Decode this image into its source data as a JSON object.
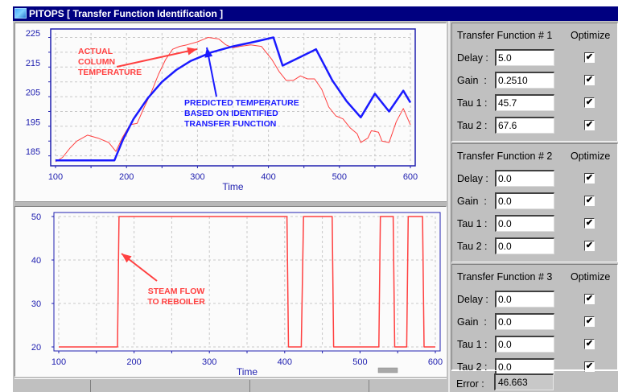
{
  "window": {
    "title": "PITOPS [ Transfer Function Identification ]"
  },
  "colors": {
    "title_bar": "#000080",
    "axis": "#2020b0",
    "actual": "#ff4040",
    "predicted": "#1a1aff",
    "panel": "#c0c0c0"
  },
  "top_chart": {
    "xlabel": "Time",
    "annotation_actual": [
      "ACTUAL",
      "COLUMN",
      "TEMPERATURE"
    ],
    "annotation_predicted": [
      "PREDICTED TEMPERATURE",
      "BASED ON IDENTIFIED",
      "TRANSFER FUNCTION"
    ]
  },
  "bottom_chart": {
    "xlabel": "Time",
    "annotation": [
      "STEAM FLOW",
      "TO REBOILER"
    ]
  },
  "chart_data": [
    {
      "type": "line",
      "title": "",
      "xlabel": "Time",
      "ylabel": "",
      "xlim": [
        100,
        600
      ],
      "ylim": [
        181.5,
        225
      ],
      "x_ticks": [
        100,
        200,
        300,
        400,
        500,
        600
      ],
      "y_ticks": [
        185,
        195,
        205,
        215,
        225
      ],
      "grid": true,
      "series": [
        {
          "name": "Actual Column Temperature",
          "color": "#ff4040",
          "x": [
            100,
            110,
            120,
            130,
            145,
            160,
            175,
            185,
            195,
            205,
            215,
            225,
            235,
            245,
            255,
            265,
            275,
            285,
            300,
            315,
            330,
            340,
            350,
            360,
            375,
            390,
            405,
            415,
            425,
            435,
            445,
            455,
            465,
            475,
            485,
            495,
            505,
            515,
            525,
            530,
            540,
            545,
            555,
            560,
            570,
            580,
            590,
            600
          ],
          "values": [
            181.5,
            183,
            186,
            188.5,
            190.5,
            189.5,
            188,
            185,
            190,
            194,
            194.5,
            200,
            205,
            211,
            216,
            219.5,
            220.5,
            221,
            222,
            223.5,
            223,
            221,
            220,
            220.5,
            221,
            220.5,
            216,
            212,
            209,
            209,
            210.5,
            209.5,
            209.5,
            206,
            200,
            197,
            196,
            193,
            191,
            188,
            189.5,
            192,
            191.5,
            188.5,
            188,
            195,
            199.5,
            194
          ]
        },
        {
          "name": "Predicted Temperature (Identified Transfer Function)",
          "color": "#1a1aff",
          "x": [
            100,
            120,
            140,
            160,
            183,
            195,
            210,
            230,
            250,
            270,
            290,
            320,
            350,
            380,
            407,
            420,
            450,
            467,
            490,
            510,
            530,
            550,
            570,
            590,
            600
          ],
          "values": [
            182,
            182,
            182,
            182,
            182,
            189,
            196,
            203,
            208.5,
            212.5,
            215.5,
            218.5,
            220.5,
            222,
            223.5,
            214,
            217.5,
            219.5,
            209,
            202,
            196.5,
            204.5,
            198.5,
            205.5,
            201.5
          ]
        }
      ]
    },
    {
      "type": "line",
      "title": "",
      "xlabel": "Time",
      "ylabel": "",
      "xlim": [
        100,
        600
      ],
      "ylim": [
        20,
        50
      ],
      "x_ticks": [
        100,
        200,
        300,
        400,
        500,
        600
      ],
      "y_ticks": [
        20,
        30,
        40,
        50
      ],
      "grid": true,
      "series": [
        {
          "name": "Steam Flow to Reboiler",
          "color": "#ff4040",
          "x": [
            100,
            178,
            180,
            403,
            405,
            422,
            425,
            463,
            465,
            525,
            527,
            544,
            546,
            562,
            564,
            583,
            585,
            600
          ],
          "values": [
            20,
            20,
            50,
            50,
            20,
            20,
            50,
            50,
            20,
            20,
            50,
            50,
            20,
            20,
            50,
            50,
            20,
            20
          ]
        }
      ]
    }
  ],
  "transfer_functions": [
    {
      "header": "Transfer Function # 1",
      "optimize_label": "Optimize",
      "rows": [
        {
          "label": "Delay :",
          "value": "5.0",
          "optimize": true
        },
        {
          "label": "Gain  :",
          "value": "0.2510",
          "optimize": true
        },
        {
          "label": "Tau 1 :",
          "value": "45.7",
          "optimize": true
        },
        {
          "label": "Tau 2 :",
          "value": "67.6",
          "optimize": true
        }
      ]
    },
    {
      "header": "Transfer Function # 2",
      "optimize_label": "Optimize",
      "rows": [
        {
          "label": "Delay :",
          "value": "0.0",
          "optimize": true
        },
        {
          "label": "Gain  :",
          "value": "0.0",
          "optimize": true
        },
        {
          "label": "Tau 1 :",
          "value": "0.0",
          "optimize": true
        },
        {
          "label": "Tau 2 :",
          "value": "0.0",
          "optimize": true
        }
      ]
    },
    {
      "header": "Transfer Function # 3",
      "optimize_label": "Optimize",
      "rows": [
        {
          "label": "Delay :",
          "value": "0.0",
          "optimize": true
        },
        {
          "label": "Gain  :",
          "value": "0.0",
          "optimize": true
        },
        {
          "label": "Tau 1 :",
          "value": "0.0",
          "optimize": true
        },
        {
          "label": "Tau 2 :",
          "value": "0.0",
          "optimize": true
        }
      ]
    }
  ],
  "error": {
    "label": "Error :",
    "value": "46.663"
  },
  "icons": {
    "app": "chart-app-icon",
    "check": "✔"
  }
}
